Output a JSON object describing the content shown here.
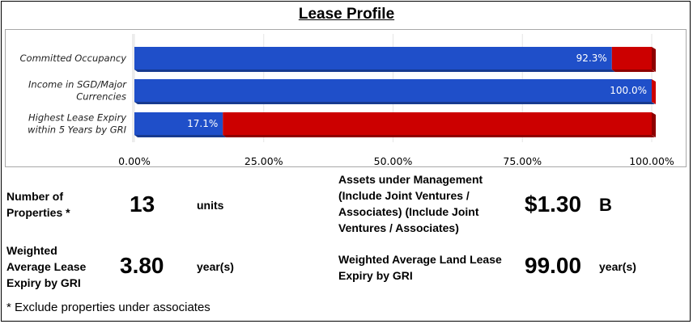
{
  "title": "Lease Profile",
  "colors": {
    "blue": "#1f4fc9",
    "blue_dark": "#173a8f",
    "red": "#cc0000",
    "red_dark": "#8e0000",
    "grid": "#e6e6e6"
  },
  "chart_data": {
    "type": "bar",
    "orientation": "horizontal",
    "stacked": true,
    "categories": [
      "Committed Occupancy",
      "Income in SGD/Major Currencies",
      "Highest Lease Expiry within 5 Years by GRI"
    ],
    "category_label_lines": [
      [
        "Committed Occupancy"
      ],
      [
        "Income in SGD/Major",
        "Currencies"
      ],
      [
        "Highest Lease Expiry",
        "within 5 Years by GRI"
      ]
    ],
    "values": [
      92.3,
      100.0,
      17.1
    ],
    "data_labels": [
      "92.3%",
      "100.0%",
      "17.1%"
    ],
    "xlim": [
      0,
      100
    ],
    "x_ticks": [
      0,
      25,
      50,
      75,
      100
    ],
    "x_tick_labels": [
      "0.00%",
      "25.00%",
      "50.00%",
      "75.00%",
      "100.00%"
    ],
    "grid": true,
    "legend": "none"
  },
  "stats": {
    "properties": {
      "label_lines": [
        "Number of",
        "Properties *"
      ],
      "value": "13",
      "unit": "units"
    },
    "wale": {
      "label_lines": [
        "Weighted",
        "Average Lease",
        "Expiry by GRI"
      ],
      "value": "3.80",
      "unit": "year(s)"
    },
    "aum": {
      "label_lines": [
        "Assets under Management",
        "(Include Joint Ventures /",
        "Associates) (Include Joint",
        "Ventures / Associates)"
      ],
      "value": "$1.30",
      "unit": "B"
    },
    "land_lease": {
      "label_lines": [
        "Weighted Average Land Lease",
        "Expiry by GRI"
      ],
      "value": "99.00",
      "unit": "year(s)"
    }
  },
  "footnote": "* Exclude properties under associates"
}
